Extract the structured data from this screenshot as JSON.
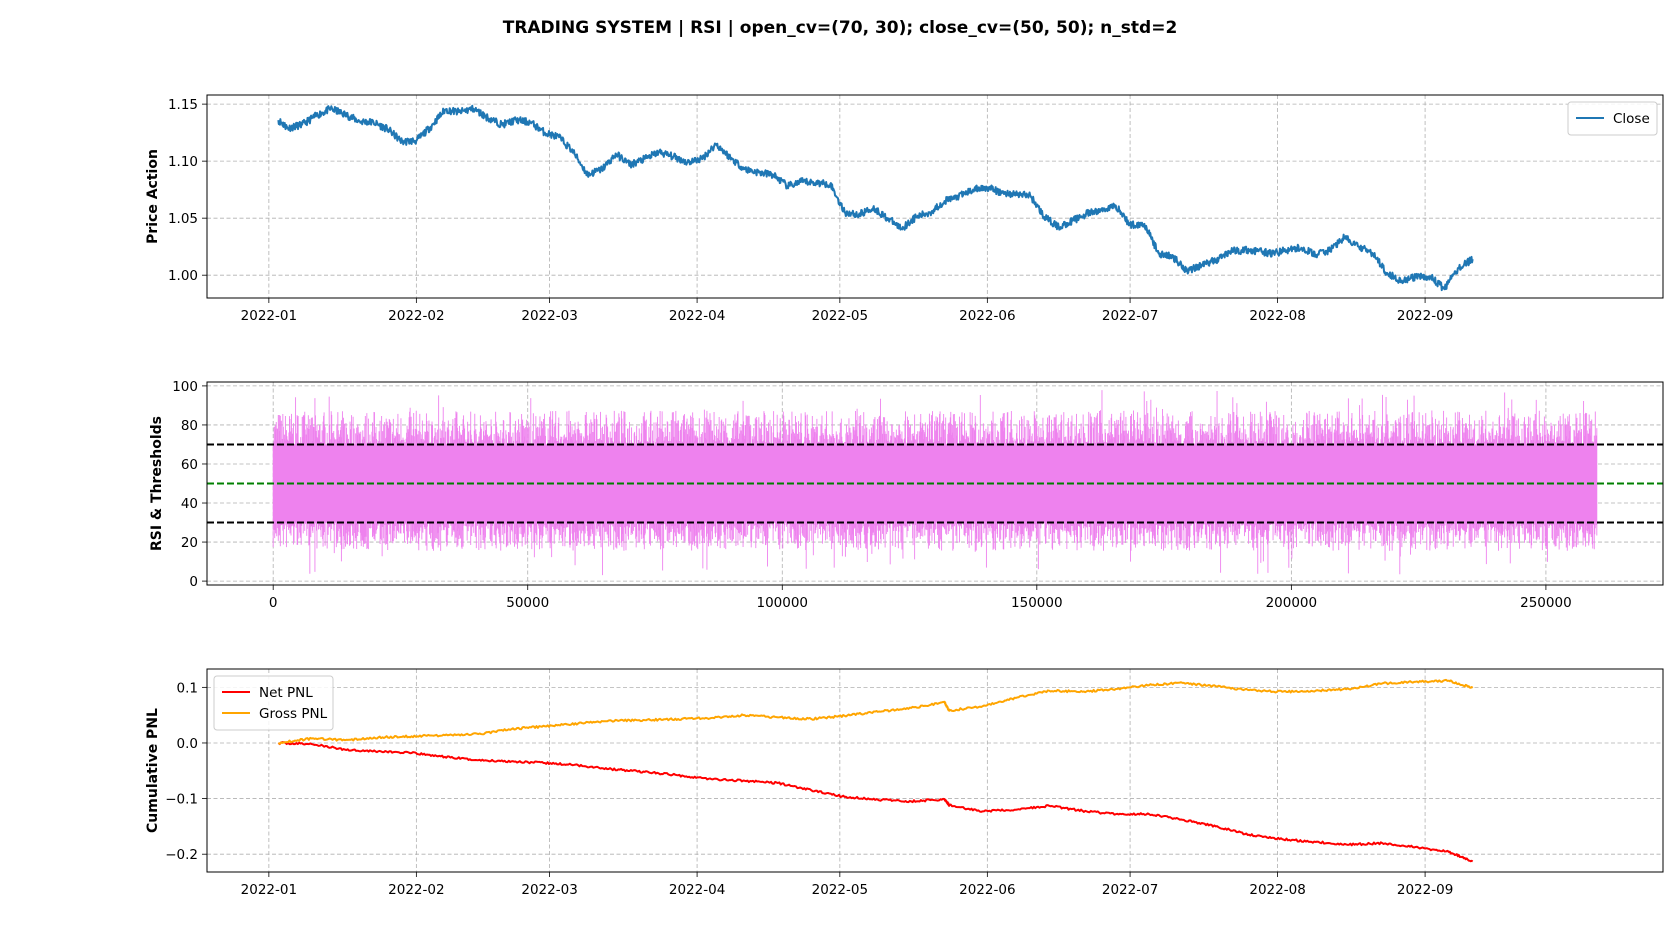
{
  "figure": {
    "title": "TRADING SYSTEM | RSI | open_cv=(70, 30); close_cv=(50, 50); n_std=2"
  },
  "colors": {
    "close": "#1f77b4",
    "rsi": "#ee82ee",
    "net_pnl": "#ff0000",
    "gross_pnl": "#ffa500",
    "open_threshold": "#000000",
    "close_threshold": "#008000",
    "grid": "#b0b0b0"
  },
  "chart_data": [
    {
      "type": "line",
      "ylabel": "Price Action",
      "x_type": "date",
      "xlim": [
        "2021-12-19",
        "2022-10-21"
      ],
      "ylim": [
        0.98,
        1.158
      ],
      "xticks": [
        "2022-01",
        "2022-02",
        "2022-03",
        "2022-04",
        "2022-05",
        "2022-06",
        "2022-07",
        "2022-08",
        "2022-09"
      ],
      "yticks": [
        "1.00",
        "1.05",
        "1.10",
        "1.15"
      ],
      "grid": true,
      "legend": {
        "position": "top-right",
        "entries": [
          "Close"
        ]
      },
      "series": [
        {
          "name": "Close",
          "color": "#1f77b4",
          "x": [
            "2022-01-03",
            "2022-01-05",
            "2022-01-08",
            "2022-01-11",
            "2022-01-14",
            "2022-01-17",
            "2022-01-20",
            "2022-01-23",
            "2022-01-26",
            "2022-01-29",
            "2022-02-01",
            "2022-02-04",
            "2022-02-07",
            "2022-02-10",
            "2022-02-13",
            "2022-02-16",
            "2022-02-19",
            "2022-02-22",
            "2022-02-25",
            "2022-02-28",
            "2022-03-03",
            "2022-03-06",
            "2022-03-09",
            "2022-03-12",
            "2022-03-15",
            "2022-03-18",
            "2022-03-21",
            "2022-03-24",
            "2022-03-27",
            "2022-03-30",
            "2022-04-02",
            "2022-04-05",
            "2022-04-08",
            "2022-04-11",
            "2022-04-14",
            "2022-04-17",
            "2022-04-20",
            "2022-04-23",
            "2022-04-26",
            "2022-04-29",
            "2022-05-02",
            "2022-05-05",
            "2022-05-08",
            "2022-05-11",
            "2022-05-14",
            "2022-05-17",
            "2022-05-20",
            "2022-05-23",
            "2022-05-26",
            "2022-05-29",
            "2022-06-01",
            "2022-06-04",
            "2022-06-07",
            "2022-06-10",
            "2022-06-13",
            "2022-06-16",
            "2022-06-19",
            "2022-06-22",
            "2022-06-25",
            "2022-06-28",
            "2022-07-01",
            "2022-07-04",
            "2022-07-07",
            "2022-07-10",
            "2022-07-13",
            "2022-07-16",
            "2022-07-19",
            "2022-07-22",
            "2022-07-25",
            "2022-07-28",
            "2022-07-31",
            "2022-08-03",
            "2022-08-06",
            "2022-08-09",
            "2022-08-12",
            "2022-08-15",
            "2022-08-18",
            "2022-08-21",
            "2022-08-24",
            "2022-08-27",
            "2022-08-30",
            "2022-09-02",
            "2022-09-05",
            "2022-09-08",
            "2022-09-11"
          ],
          "y": [
            1.136,
            1.129,
            1.132,
            1.14,
            1.146,
            1.141,
            1.135,
            1.134,
            1.128,
            1.117,
            1.118,
            1.13,
            1.145,
            1.143,
            1.146,
            1.138,
            1.132,
            1.136,
            1.134,
            1.125,
            1.121,
            1.108,
            1.088,
            1.093,
            1.106,
            1.097,
            1.102,
            1.108,
            1.104,
            1.099,
            1.102,
            1.115,
            1.103,
            1.093,
            1.09,
            1.088,
            1.078,
            1.082,
            1.081,
            1.08,
            1.055,
            1.053,
            1.059,
            1.05,
            1.041,
            1.051,
            1.055,
            1.065,
            1.069,
            1.075,
            1.077,
            1.072,
            1.071,
            1.07,
            1.051,
            1.042,
            1.048,
            1.054,
            1.057,
            1.061,
            1.044,
            1.045,
            1.019,
            1.016,
            1.004,
            1.009,
            1.013,
            1.021,
            1.022,
            1.021,
            1.019,
            1.022,
            1.024,
            1.018,
            1.022,
            1.033,
            1.025,
            1.019,
            1.002,
            0.995,
            0.998,
            0.999,
            0.988,
            1.006,
            1.014
          ]
        }
      ]
    },
    {
      "type": "line",
      "ylabel": "RSI & Thresholds",
      "x_type": "index",
      "xlim": [
        -13000,
        273000
      ],
      "ylim": [
        -2,
        102
      ],
      "xticks": [
        0,
        50000,
        100000,
        150000,
        200000,
        250000
      ],
      "yticks": [
        0,
        20,
        40,
        60,
        80,
        100
      ],
      "grid": true,
      "series": [
        {
          "name": "",
          "color": "#ee82ee",
          "x_range": [
            0,
            260000
          ],
          "band_core": [
            30,
            70
          ],
          "envelope_typical": [
            15,
            88
          ],
          "extremes": {
            "max": 98,
            "min": 3
          }
        }
      ],
      "hlines": [
        {
          "y": 70,
          "color": "#000000",
          "style": "dashed"
        },
        {
          "y": 50,
          "color": "#008000",
          "style": "dashed"
        },
        {
          "y": 30,
          "color": "#000000",
          "style": "dashed"
        }
      ]
    },
    {
      "type": "line",
      "ylabel": "Cumulative PNL",
      "x_type": "date",
      "xlim": [
        "2021-12-19",
        "2022-10-21"
      ],
      "ylim": [
        -0.232,
        0.133
      ],
      "xticks": [
        "2022-01",
        "2022-02",
        "2022-03",
        "2022-04",
        "2022-05",
        "2022-06",
        "2022-07",
        "2022-08",
        "2022-09"
      ],
      "yticks": [
        "−0.2",
        "−0.1",
        "0.0",
        "0.1"
      ],
      "grid": true,
      "legend": {
        "position": "top-left",
        "entries": [
          "Net PNL",
          "Gross PNL"
        ]
      },
      "series": [
        {
          "name": "Net PNL",
          "color": "#ff0000",
          "x": [
            "2022-01-03",
            "2022-01-10",
            "2022-01-17",
            "2022-01-24",
            "2022-01-31",
            "2022-02-07",
            "2022-02-14",
            "2022-02-21",
            "2022-02-28",
            "2022-03-07",
            "2022-03-14",
            "2022-03-21",
            "2022-03-28",
            "2022-04-04",
            "2022-04-11",
            "2022-04-18",
            "2022-04-25",
            "2022-05-02",
            "2022-05-09",
            "2022-05-16",
            "2022-05-23",
            "2022-05-24",
            "2022-05-31",
            "2022-06-07",
            "2022-06-14",
            "2022-06-21",
            "2022-06-28",
            "2022-07-05",
            "2022-07-12",
            "2022-07-19",
            "2022-07-26",
            "2022-08-02",
            "2022-08-09",
            "2022-08-16",
            "2022-08-23",
            "2022-08-30",
            "2022-09-06",
            "2022-09-11"
          ],
          "y": [
            0.0,
            -0.002,
            -0.012,
            -0.015,
            -0.018,
            -0.025,
            -0.031,
            -0.033,
            -0.036,
            -0.04,
            -0.047,
            -0.052,
            -0.058,
            -0.065,
            -0.068,
            -0.072,
            -0.085,
            -0.097,
            -0.102,
            -0.105,
            -0.101,
            -0.112,
            -0.123,
            -0.12,
            -0.113,
            -0.122,
            -0.128,
            -0.128,
            -0.138,
            -0.15,
            -0.165,
            -0.173,
            -0.178,
            -0.183,
            -0.18,
            -0.187,
            -0.196,
            -0.213
          ]
        },
        {
          "name": "Gross PNL",
          "color": "#ffa500",
          "x": [
            "2022-01-03",
            "2022-01-10",
            "2022-01-17",
            "2022-01-24",
            "2022-01-31",
            "2022-02-07",
            "2022-02-14",
            "2022-02-21",
            "2022-02-28",
            "2022-03-07",
            "2022-03-14",
            "2022-03-21",
            "2022-03-28",
            "2022-04-04",
            "2022-04-11",
            "2022-04-18",
            "2022-04-25",
            "2022-05-02",
            "2022-05-09",
            "2022-05-16",
            "2022-05-23",
            "2022-05-24",
            "2022-05-31",
            "2022-06-07",
            "2022-06-14",
            "2022-06-21",
            "2022-06-28",
            "2022-07-05",
            "2022-07-12",
            "2022-07-19",
            "2022-07-26",
            "2022-08-02",
            "2022-08-09",
            "2022-08-16",
            "2022-08-23",
            "2022-08-30",
            "2022-09-06",
            "2022-09-11"
          ],
          "y": [
            0.0,
            0.008,
            0.005,
            0.01,
            0.012,
            0.014,
            0.016,
            0.025,
            0.03,
            0.035,
            0.04,
            0.041,
            0.043,
            0.045,
            0.05,
            0.046,
            0.043,
            0.049,
            0.056,
            0.063,
            0.073,
            0.058,
            0.066,
            0.081,
            0.094,
            0.092,
            0.097,
            0.104,
            0.108,
            0.102,
            0.095,
            0.092,
            0.094,
            0.097,
            0.107,
            0.11,
            0.112,
            0.099
          ]
        }
      ]
    }
  ]
}
